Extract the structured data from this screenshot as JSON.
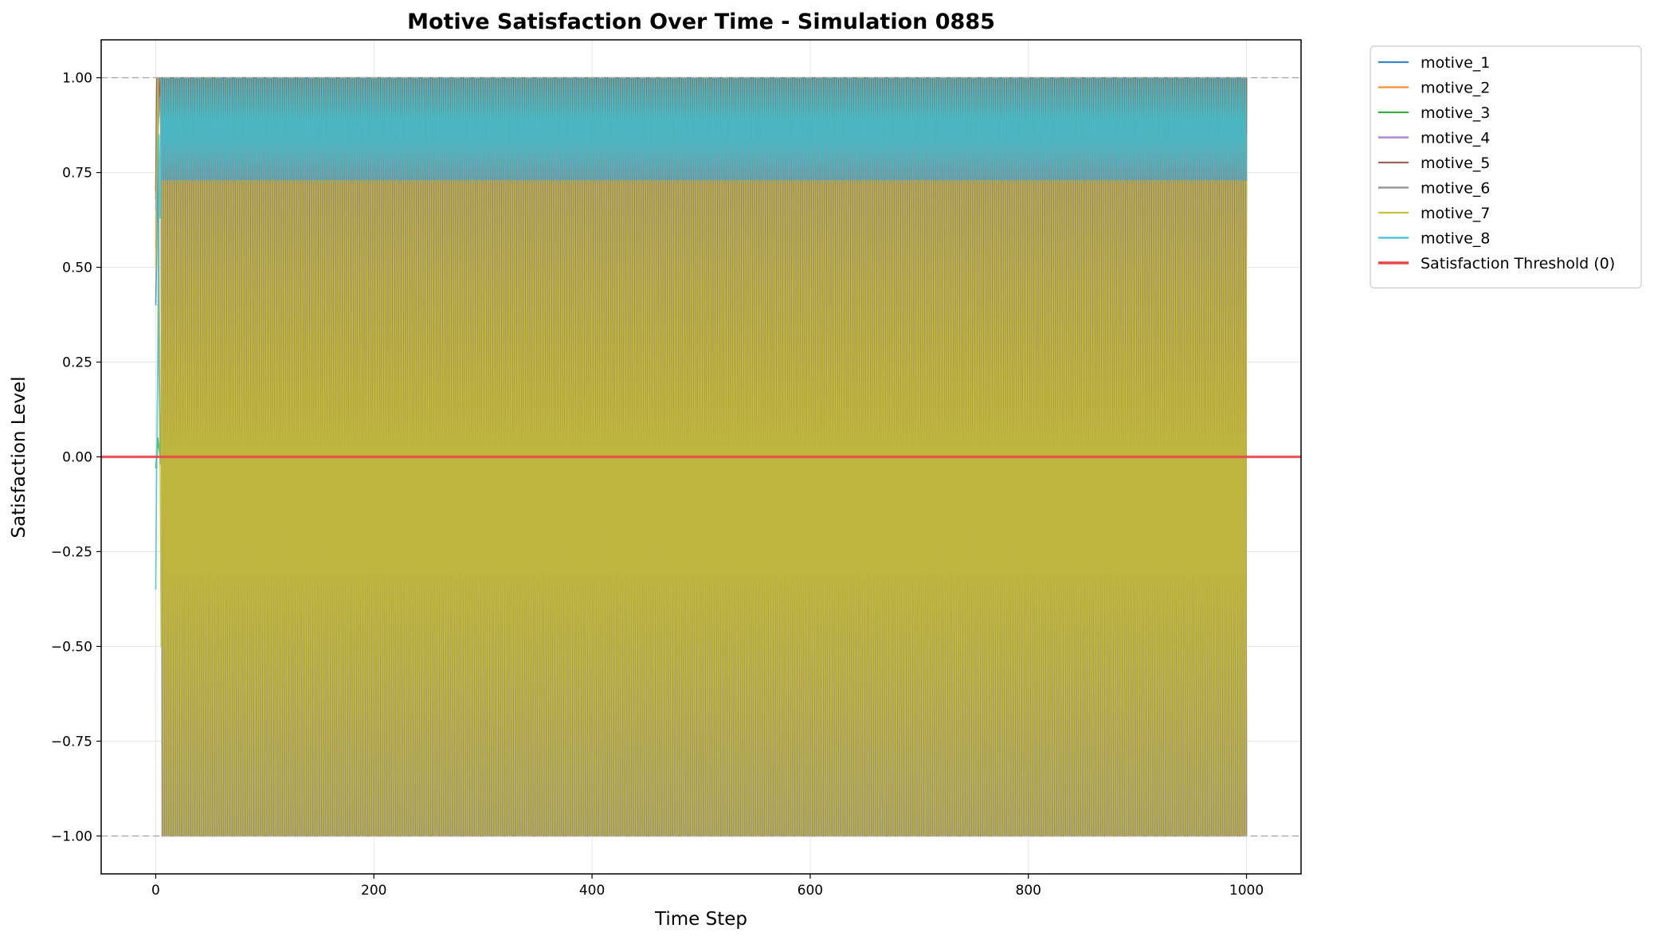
{
  "chart_data": {
    "type": "line",
    "title": "Motive Satisfaction Over Time - Simulation 0885",
    "xlabel": "Time Step",
    "ylabel": "Satisfaction Level",
    "xlim": [
      -50,
      1050
    ],
    "ylim": [
      -1.1,
      1.1
    ],
    "xticks": [
      0,
      200,
      400,
      600,
      800,
      1000
    ],
    "xtick_labels": [
      "0",
      "200",
      "400",
      "600",
      "800",
      "1000"
    ],
    "yticks": [
      1.0,
      0.75,
      0.5,
      0.25,
      0.0,
      -0.25,
      -0.5,
      -0.75,
      -1.0
    ],
    "ytick_labels": [
      "1.00",
      "0.75",
      "0.50",
      "0.25",
      "0.00",
      "−0.25",
      "−0.50",
      "−0.75",
      "−1.00"
    ],
    "grid": true,
    "legend_position": "outside-top-right",
    "reference_lines": {
      "bounds": [
        1.0,
        -1.0
      ],
      "bounds_color": "#aaaaaa",
      "threshold": {
        "name": "Satisfaction Threshold (0)",
        "y": 0,
        "color": "#e8474a"
      }
    },
    "time_steps": 1000,
    "series": [
      {
        "name": "motive_1",
        "color": "#3a86c8",
        "start": [
          0.4,
          0.55,
          0.9,
          0.25,
          -0.02,
          0.0
        ],
        "oscillation": [
          0.0,
          1.0
        ]
      },
      {
        "name": "motive_2",
        "color": "#ff8e2e",
        "start": [
          0.55,
          1.0,
          0.95,
          0.9,
          1.0,
          0.85
        ],
        "oscillation": [
          -1.0,
          1.0
        ]
      },
      {
        "name": "motive_3",
        "color": "#3cab47",
        "start": [
          -0.03,
          0.0,
          0.05,
          0.02,
          0.0,
          0.0
        ],
        "oscillation": [
          -1.0,
          1.0
        ]
      },
      {
        "name": "motive_4",
        "color": "#a57ed1",
        "start": [
          0.65,
          0.85,
          1.0,
          0.95,
          1.0,
          0.9
        ],
        "oscillation": [
          -1.0,
          1.0
        ]
      },
      {
        "name": "motive_5",
        "color": "#9a6458",
        "start": [
          0.7,
          1.0,
          0.9,
          1.0,
          0.95,
          1.0
        ],
        "oscillation": [
          -1.0,
          1.0
        ]
      },
      {
        "name": "motive_6",
        "color": "#8f8f8f",
        "start": [
          0.68,
          1.0,
          0.85,
          0.9,
          1.0,
          0.8
        ],
        "oscillation": [
          -1.0,
          1.0
        ]
      },
      {
        "name": "motive_7",
        "color": "#c4c23a",
        "start": [
          0.5,
          0.8,
          1.0,
          0.6,
          0.0,
          -0.5
        ],
        "oscillation": [
          -1.0,
          0.73
        ]
      },
      {
        "name": "motive_8",
        "color": "#3fc1cf",
        "start": [
          -0.35,
          0.0,
          0.3,
          0.85,
          0.63,
          1.0
        ],
        "oscillation": [
          0.73,
          1.0
        ]
      }
    ]
  }
}
